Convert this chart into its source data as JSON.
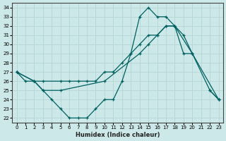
{
  "xlabel": "Humidex (Indice chaleur)",
  "xlim": [
    -0.5,
    23.5
  ],
  "ylim": [
    21.5,
    34.5
  ],
  "xticks": [
    0,
    1,
    2,
    3,
    4,
    5,
    6,
    7,
    8,
    9,
    10,
    11,
    12,
    13,
    14,
    15,
    16,
    17,
    18,
    19,
    20,
    21,
    22,
    23
  ],
  "yticks": [
    22,
    23,
    24,
    25,
    26,
    27,
    28,
    29,
    30,
    31,
    32,
    33,
    34
  ],
  "background_color": "#cde8e8",
  "grid_color": "#b8d8d8",
  "line_color": "#006060",
  "line1_x": [
    0,
    2,
    3,
    5,
    6,
    7,
    8,
    9,
    10,
    11,
    12,
    13,
    14,
    15,
    16,
    17,
    18,
    19,
    20,
    22,
    23
  ],
  "line1_y": [
    27,
    26,
    26,
    26,
    26,
    26,
    26,
    26,
    27,
    27,
    28,
    29,
    30,
    31,
    31,
    32,
    32,
    29,
    29,
    25,
    24
  ],
  "line2_x": [
    0,
    2,
    3,
    5,
    10,
    14,
    15,
    16,
    17,
    18,
    20,
    23
  ],
  "line2_y": [
    27,
    26,
    25,
    25,
    26,
    29,
    30,
    31,
    32,
    32,
    29,
    24
  ],
  "line3_x": [
    0,
    1,
    2,
    3,
    4,
    5,
    6,
    7,
    8,
    9,
    10,
    11,
    12,
    13,
    14,
    15,
    16,
    17,
    18,
    19,
    20,
    21,
    22,
    23
  ],
  "line3_y": [
    27,
    26,
    26,
    25,
    24,
    23,
    22,
    22,
    22,
    23,
    24,
    24,
    26,
    29,
    33,
    34,
    33,
    33,
    32,
    31,
    29,
    null,
    25,
    24
  ]
}
